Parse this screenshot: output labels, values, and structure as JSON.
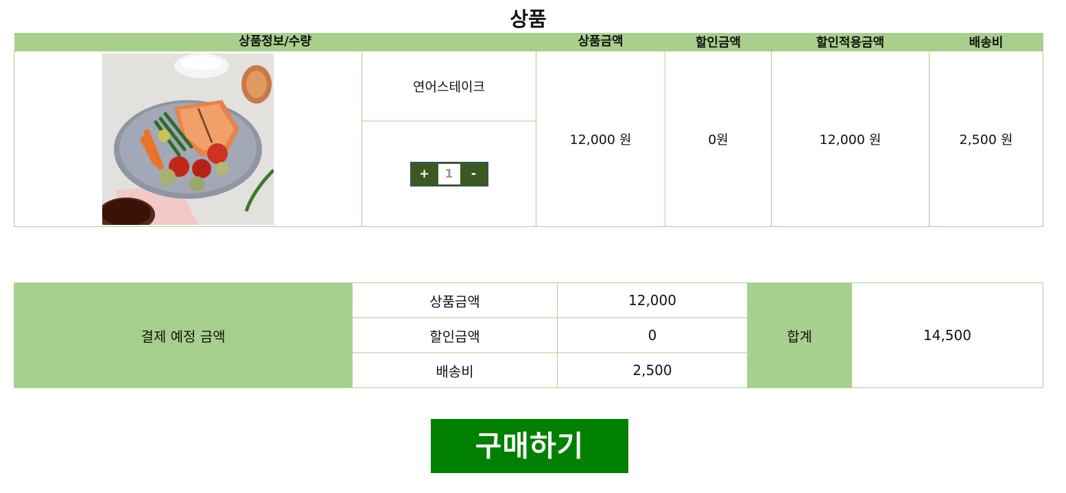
{
  "page": {
    "title": "상품"
  },
  "cart": {
    "headers": {
      "product_info": "상품정보/수량",
      "price": "상품금액",
      "discount": "할인금액",
      "discounted_price": "할인적용금액",
      "shipping": "배송비"
    },
    "item": {
      "image_icon": "salmon-steak-photo",
      "name": "연어스테이크",
      "quantity": "1",
      "plus_label": "+",
      "minus_label": "-",
      "price": "12,000 원",
      "discount": "0원",
      "discounted_price": "12,000 원",
      "shipping": "2,500 원"
    }
  },
  "summary": {
    "label": "결제 예정 금액",
    "rows": [
      {
        "label": "상품금액",
        "value": "12,000"
      },
      {
        "label": "할인금액",
        "value": "0"
      },
      {
        "label": "배송비",
        "value": "2,500"
      }
    ],
    "total_label": "합계",
    "total_value": "14,500"
  },
  "actions": {
    "buy_label": "구매하기"
  },
  "colors": {
    "header_green": "#a8d08d",
    "buy_button": "#008000",
    "qty_control": "#3a5a22"
  }
}
